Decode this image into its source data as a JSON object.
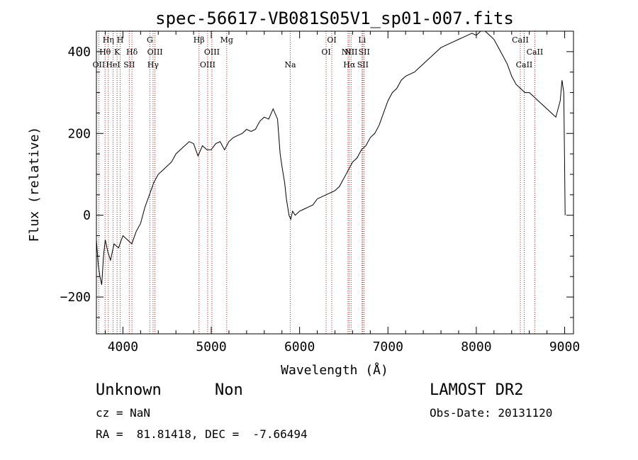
{
  "chart_data": {
    "type": "line",
    "title": "spec-56617-VB081S05V1_sp01-007.fits",
    "xlabel": "Wavelength (Å)",
    "ylabel": "Flux (relative)",
    "xlim": [
      3700,
      9100
    ],
    "ylim": [
      -290,
      450
    ],
    "x_ticks": [
      4000,
      5000,
      6000,
      7000,
      8000,
      9000
    ],
    "y_ticks": [
      -200,
      0,
      200,
      400
    ],
    "grid": false,
    "colors": {
      "spectrum": "#000000",
      "line_markers": "#b22222"
    },
    "series": [
      {
        "x": [
          3700,
          3720,
          3740,
          3760,
          3780,
          3800,
          3830,
          3860,
          3900,
          3950,
          4000,
          4050,
          4100,
          4150,
          4200,
          4250,
          4300,
          4350,
          4400,
          4450,
          4500,
          4550,
          4600,
          4650,
          4700,
          4750,
          4800,
          4850,
          4900,
          4950,
          5000,
          5050,
          5100,
          5150,
          5200,
          5250,
          5300,
          5350,
          5400,
          5450,
          5500,
          5550,
          5600,
          5650,
          5700,
          5750,
          5780,
          5800,
          5830,
          5850,
          5880,
          5900,
          5920,
          5950,
          6000,
          6050,
          6100,
          6150,
          6200,
          6250,
          6300,
          6350,
          6400,
          6450,
          6500,
          6550,
          6600,
          6650,
          6700,
          6750,
          6800,
          6850,
          6900,
          6950,
          7000,
          7050,
          7100,
          7150,
          7200,
          7250,
          7300,
          7350,
          7400,
          7450,
          7500,
          7550,
          7600,
          7650,
          7700,
          7750,
          7800,
          7850,
          7900,
          7950,
          8000,
          8050,
          8100,
          8150,
          8200,
          8250,
          8300,
          8350,
          8400,
          8450,
          8500,
          8550,
          8600,
          8650,
          8700,
          8750,
          8800,
          8850,
          8900,
          8950,
          8970,
          8990,
          9000,
          9005
        ],
        "y": [
          -60,
          -120,
          -150,
          -170,
          -100,
          -60,
          -90,
          -110,
          -70,
          -80,
          -50,
          -60,
          -70,
          -40,
          -20,
          20,
          50,
          80,
          100,
          110,
          120,
          130,
          150,
          160,
          170,
          180,
          175,
          145,
          170,
          160,
          160,
          175,
          180,
          160,
          180,
          190,
          195,
          200,
          210,
          205,
          210,
          230,
          240,
          235,
          260,
          235,
          150,
          120,
          80,
          40,
          0,
          -10,
          10,
          0,
          10,
          15,
          20,
          25,
          40,
          45,
          50,
          55,
          60,
          70,
          90,
          110,
          130,
          140,
          160,
          170,
          190,
          200,
          220,
          250,
          280,
          300,
          310,
          330,
          340,
          345,
          350,
          360,
          370,
          380,
          390,
          400,
          410,
          415,
          420,
          425,
          430,
          435,
          440,
          445,
          440,
          450,
          450,
          440,
          430,
          410,
          390,
          370,
          340,
          320,
          310,
          300,
          300,
          290,
          280,
          270,
          260,
          250,
          240,
          280,
          330,
          300,
          120,
          0
        ]
      }
    ],
    "line_markers": [
      {
        "label": "OII",
        "x": 3727,
        "row": 3
      },
      {
        "label": "Hθ",
        "x": 3798,
        "row": 2
      },
      {
        "label": "Hη",
        "x": 3835,
        "row": 1
      },
      {
        "label": "HeI",
        "x": 3889,
        "row": 3
      },
      {
        "label": "K",
        "x": 3934,
        "row": 2
      },
      {
        "label": "H",
        "x": 3969,
        "row": 1
      },
      {
        "label": "SII",
        "x": 4072,
        "row": 3
      },
      {
        "label": "Hδ",
        "x": 4102,
        "row": 2
      },
      {
        "label": "G",
        "x": 4305,
        "row": 1
      },
      {
        "label": "Hγ",
        "x": 4341,
        "row": 3
      },
      {
        "label": "OIII",
        "x": 4363,
        "row": 2
      },
      {
        "label": "Hβ",
        "x": 4861,
        "row": 1
      },
      {
        "label": "OIII",
        "x": 4959,
        "row": 3
      },
      {
        "label": "OIII",
        "x": 5007,
        "row": 2
      },
      {
        "label": "Mg",
        "x": 5175,
        "row": 1
      },
      {
        "label": "Na",
        "x": 5894,
        "row": 3
      },
      {
        "label": "OI",
        "x": 6300,
        "row": 2
      },
      {
        "label": "OI",
        "x": 6364,
        "row": 1
      },
      {
        "label": "NII",
        "x": 6548,
        "row": 2
      },
      {
        "label": "Hα",
        "x": 6563,
        "row": 3
      },
      {
        "label": "NII",
        "x": 6583,
        "row": 2
      },
      {
        "label": "Li",
        "x": 6707,
        "row": 1
      },
      {
        "label": "SII",
        "x": 6716,
        "row": 3
      },
      {
        "label": "SII",
        "x": 6731,
        "row": 2
      },
      {
        "label": "CaII",
        "x": 8498,
        "row": 1
      },
      {
        "label": "CaII",
        "x": 8542,
        "row": 3
      },
      {
        "label": "CaII",
        "x": 8662,
        "row": 2
      }
    ]
  },
  "info": {
    "class": "Unknown",
    "subclass": "Non",
    "cz": "cz = NaN",
    "radec": "RA =  81.81418, DEC =  -7.66494",
    "survey": "LAMOST DR2",
    "obsdate": "Obs-Date: 20131120"
  }
}
